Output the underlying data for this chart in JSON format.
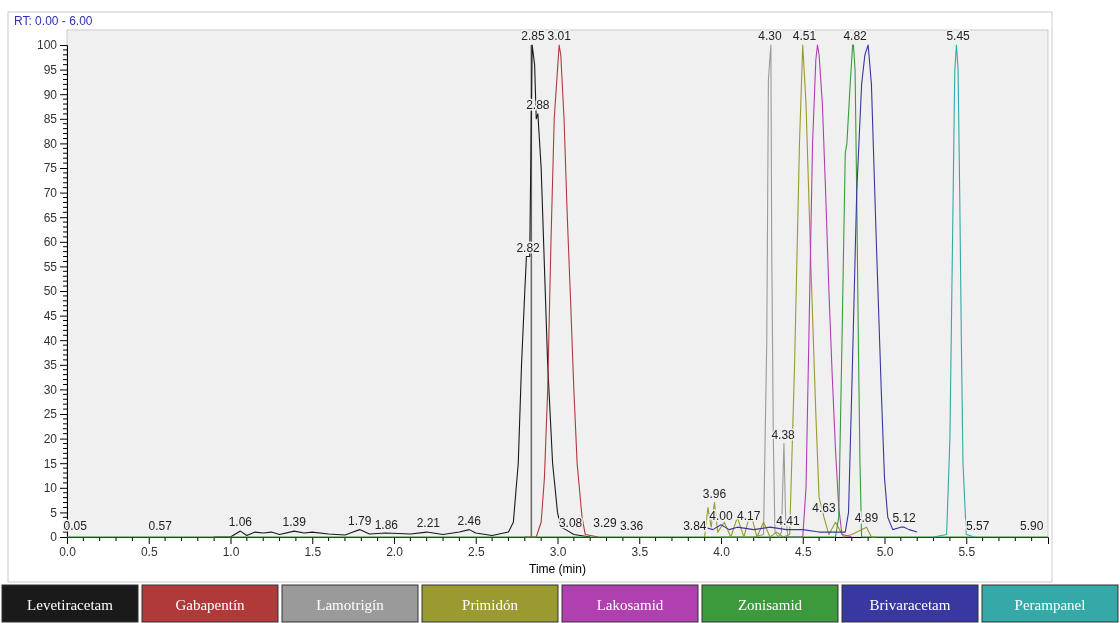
{
  "chart_data": {
    "type": "line",
    "subtitle": "RT: 0.00 - 6.00",
    "xlabel": "Time (min)",
    "xlim": [
      0,
      6.0
    ],
    "ylim": [
      0,
      100
    ],
    "xticks": [
      {
        "value": 0,
        "label": "0.0"
      },
      0.5,
      {
        "value": 1,
        "label": "1.0"
      },
      1.5,
      {
        "value": 2,
        "label": "2.0"
      },
      2.5,
      {
        "value": 3,
        "label": "3.0"
      },
      3.5,
      {
        "value": 4,
        "label": "4.0"
      },
      4.5,
      {
        "value": 5,
        "label": "5.0"
      },
      5.5
    ],
    "yticks": [
      0,
      5,
      10,
      15,
      20,
      25,
      30,
      35,
      40,
      45,
      50,
      55,
      60,
      65,
      70,
      75,
      80,
      85,
      90,
      95,
      100
    ],
    "grid": false,
    "legend": "bottom",
    "marker": "none",
    "line_style": "solid",
    "ref_lines": [
      {
        "axis": "x",
        "value": 2.84,
        "label": null,
        "color": "#666666"
      }
    ],
    "series": [
      {
        "name": "Levetiracetam",
        "color": "#1a1a1a",
        "x": [
          0.9,
          1.0,
          1.06,
          1.1,
          1.15,
          1.2,
          1.25,
          1.3,
          1.39,
          1.45,
          1.5,
          1.6,
          1.7,
          1.75,
          1.79,
          1.85,
          1.95,
          2.1,
          2.2,
          2.3,
          2.4,
          2.46,
          2.5,
          2.6,
          2.7,
          2.73,
          2.76,
          2.78,
          2.8,
          2.81,
          2.82,
          2.83,
          2.845,
          2.86,
          2.87,
          2.88,
          2.9,
          2.92,
          2.94,
          2.97,
          3.0,
          3.02,
          3.05,
          3.1,
          3.2
        ],
        "values": [
          0,
          0,
          1.2,
          0.3,
          1,
          0.8,
          1,
          0.5,
          1.2,
          0.8,
          1,
          0.6,
          0.4,
          1,
          1.5,
          0.6,
          0.8,
          0.6,
          1,
          0.5,
          1,
          1.5,
          0.8,
          0.3,
          1,
          3,
          15,
          35,
          50,
          57,
          57,
          57,
          100,
          96,
          85,
          86,
          75,
          55,
          35,
          15,
          5,
          2,
          1.5,
          0.5,
          0
        ]
      },
      {
        "name": "Gabapentín",
        "color": "#b03a3a",
        "x": [
          2.8,
          2.87,
          2.9,
          2.92,
          2.94,
          2.96,
          2.98,
          3.0,
          3.01,
          3.02,
          3.04,
          3.06,
          3.08,
          3.1,
          3.12,
          3.15,
          3.17,
          3.25
        ],
        "values": [
          0,
          0,
          3,
          12,
          30,
          60,
          85,
          95,
          100,
          98,
          85,
          65,
          48,
          30,
          15,
          4,
          0.5,
          0
        ]
      },
      {
        "name": "Lamotrigín",
        "color": "#9a9a9a",
        "x": [
          4.0,
          4.2,
          4.26,
          4.28,
          4.29,
          4.305,
          4.31,
          4.32,
          4.33,
          4.35,
          4.37,
          4.385,
          4.395,
          4.41,
          4.5
        ],
        "values": [
          0,
          0,
          0.5,
          40,
          93,
          100,
          60,
          20,
          1,
          0,
          1,
          19,
          4,
          0,
          0
        ]
      },
      {
        "name": "Primidón",
        "color": "#9a9a30",
        "x": [
          3.9,
          3.92,
          3.94,
          3.96,
          3.98,
          4.02,
          4.06,
          4.1,
          4.14,
          4.18,
          4.22,
          4.26,
          4.3,
          4.34,
          4.38,
          4.42,
          4.45,
          4.48,
          4.5,
          4.52,
          4.55,
          4.58,
          4.6,
          4.63,
          4.66,
          4.7,
          4.75,
          4.8,
          4.89,
          4.92,
          4.95
        ],
        "values": [
          0,
          6,
          2,
          7,
          1,
          3,
          0,
          4,
          0,
          5,
          0,
          3,
          0,
          1,
          0,
          0.5,
          35,
          80,
          100,
          88,
          55,
          25,
          8,
          4,
          0.5,
          3,
          0,
          0.5,
          2,
          0,
          0
        ]
      },
      {
        "name": "Lakosamid",
        "color": "#b040b0",
        "x": [
          4.4,
          4.5,
          4.52,
          4.54,
          4.56,
          4.58,
          4.59,
          4.6,
          4.62,
          4.64,
          4.66,
          4.68,
          4.7,
          4.72,
          4.74,
          4.8
        ],
        "values": [
          0,
          0,
          10,
          45,
          80,
          97,
          100,
          98,
          88,
          70,
          50,
          33,
          18,
          6,
          0.5,
          0
        ]
      },
      {
        "name": "Zonisamid",
        "color": "#3c9a3c",
        "x": [
          0,
          1.0,
          2.0,
          3.0,
          4.0,
          4.7,
          4.72,
          4.74,
          4.76,
          4.77,
          4.79,
          4.805,
          4.81,
          4.82,
          4.83,
          4.84,
          4.85,
          4.86,
          4.9,
          5.5,
          6.0
        ],
        "values": [
          0,
          0,
          0,
          0,
          0,
          0,
          4,
          40,
          78,
          80,
          92,
          100,
          100,
          95,
          70,
          40,
          15,
          0,
          0,
          0,
          0
        ]
      },
      {
        "name": "Brivaracetam",
        "color": "#3838a0",
        "x": [
          3.9,
          3.95,
          4.0,
          4.05,
          4.1,
          4.2,
          4.3,
          4.4,
          4.5,
          4.6,
          4.7,
          4.76,
          4.78,
          4.8,
          4.83,
          4.86,
          4.88,
          4.9,
          4.92,
          4.95,
          4.98,
          5.0,
          5.02,
          5.05,
          5.1,
          5.12,
          5.15,
          5.2
        ],
        "values": [
          2,
          1.5,
          2.5,
          1.5,
          2,
          1.5,
          2,
          1.5,
          1.5,
          1,
          1,
          1,
          5,
          30,
          70,
          92,
          98,
          100,
          92,
          60,
          30,
          12,
          4,
          1.5,
          2,
          2,
          1.5,
          1
        ]
      },
      {
        "name": "Perampanel",
        "color": "#35a8a8",
        "x": [
          5.3,
          5.38,
          5.4,
          5.42,
          5.43,
          5.44,
          5.45,
          5.46,
          5.47,
          5.48,
          5.5,
          5.55
        ],
        "values": [
          0,
          0.5,
          20,
          70,
          95,
          100,
          95,
          70,
          40,
          15,
          0.5,
          0
        ]
      }
    ],
    "annotations": [
      {
        "text": "0.05",
        "x": 0.05,
        "y": 0.5
      },
      {
        "text": "0.57",
        "x": 0.57,
        "y": 0.5
      },
      {
        "text": "1.06",
        "x": 1.06,
        "y": 1.2
      },
      {
        "text": "1.39",
        "x": 1.39,
        "y": 1.2
      },
      {
        "text": "1.79",
        "x": 1.79,
        "y": 1.5
      },
      {
        "text": "1.86",
        "x": 1.86,
        "y": 0.6
      },
      {
        "text": "2.21",
        "x": 2.21,
        "y": 1
      },
      {
        "text": "2.46",
        "x": 2.46,
        "y": 1.5
      },
      {
        "text": "2.82",
        "x": 2.82,
        "y": 57
      },
      {
        "text": "2.85",
        "x": 2.85,
        "y": 100
      },
      {
        "text": "2.88",
        "x": 2.88,
        "y": 86
      },
      {
        "text": "3.01",
        "x": 3.01,
        "y": 100
      },
      {
        "text": "3.08",
        "x": 3.08,
        "y": 1
      },
      {
        "text": "3.29",
        "x": 3.29,
        "y": 1
      },
      {
        "text": "3.36",
        "x": 3.36,
        "y": 0.5
      },
      {
        "text": "3.84",
        "x": 3.84,
        "y": 0.5
      },
      {
        "text": "3.96",
        "x": 3.96,
        "y": 7
      },
      {
        "text": "4.00",
        "x": 4.0,
        "y": 2.5
      },
      {
        "text": "4.17",
        "x": 4.17,
        "y": 2.5
      },
      {
        "text": "4.30",
        "x": 4.3,
        "y": 100
      },
      {
        "text": "4.38",
        "x": 4.38,
        "y": 19
      },
      {
        "text": "4.41",
        "x": 4.41,
        "y": 1.5
      },
      {
        "text": "4.51",
        "x": 4.51,
        "y": 100
      },
      {
        "text": "4.63",
        "x": 4.63,
        "y": 4
      },
      {
        "text": "4.82",
        "x": 4.82,
        "y": 100
      },
      {
        "text": "4.89",
        "x": 4.89,
        "y": 2
      },
      {
        "text": "5.12",
        "x": 5.12,
        "y": 2
      },
      {
        "text": "5.45",
        "x": 5.45,
        "y": 100
      },
      {
        "text": "5.57",
        "x": 5.57,
        "y": 0.5
      },
      {
        "text": "5.90",
        "x": 5.9,
        "y": 0.5
      }
    ]
  }
}
